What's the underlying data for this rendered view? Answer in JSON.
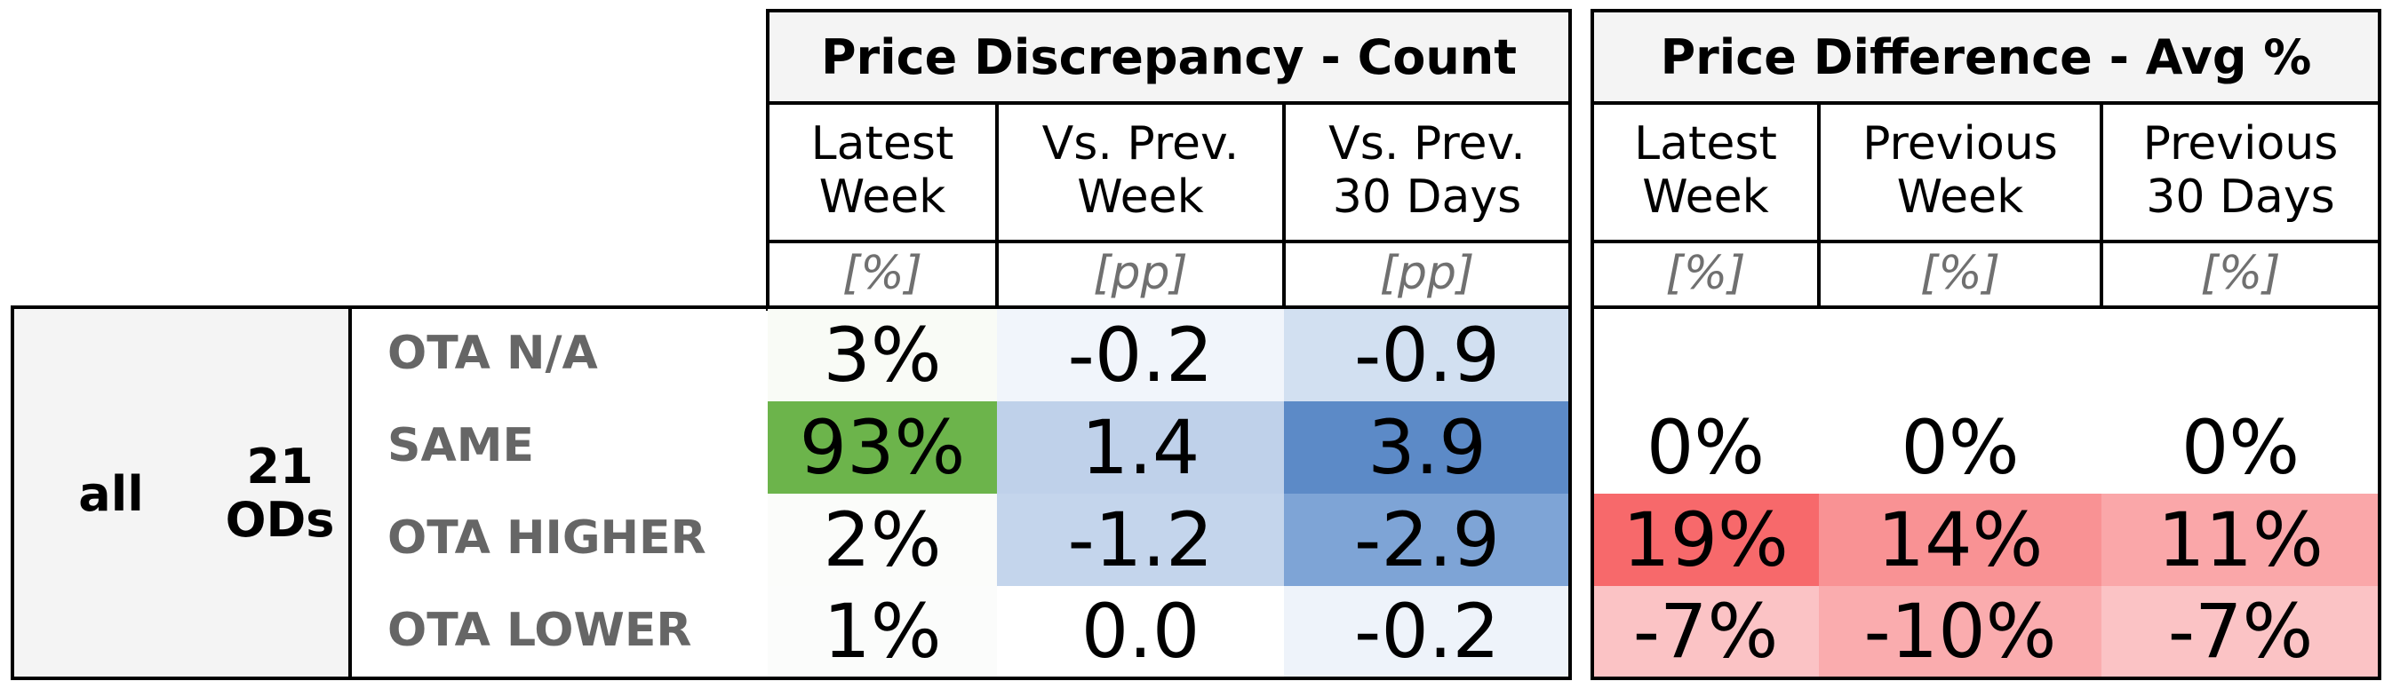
{
  "chart_data": {
    "type": "table",
    "groups": [
      {
        "title": "Price Discrepancy - Count",
        "columns": [
          {
            "label_lines": [
              "Latest",
              "Week"
            ],
            "unit": "[%]"
          },
          {
            "label_lines": [
              "Vs. Prev.",
              "Week"
            ],
            "unit": "[pp]"
          },
          {
            "label_lines": [
              "Vs. Prev.",
              "30 Days"
            ],
            "unit": "[pp]"
          }
        ],
        "rows": [
          [
            "3%",
            "-0.2",
            "-0.9"
          ],
          [
            "93%",
            "1.4",
            "3.9"
          ],
          [
            "2%",
            "-1.2",
            "-2.9"
          ],
          [
            "1%",
            "0.0",
            "-0.2"
          ]
        ],
        "cell_colors": [
          [
            "#f9fbf6",
            "#f1f5fb",
            "#d2e0f1"
          ],
          [
            "#6cb44b",
            "#bfd1ea",
            "#5c8ac7"
          ],
          [
            "#fbfcfa",
            "#c4d5ec",
            "#7ea4d6"
          ],
          [
            "#fbfcfb",
            "#ffffff",
            "#eef3fa"
          ]
        ]
      },
      {
        "title": "Price Difference - Avg %",
        "columns": [
          {
            "label_lines": [
              "Latest",
              "Week"
            ],
            "unit": "[%]"
          },
          {
            "label_lines": [
              "Previous",
              "Week"
            ],
            "unit": "[%]"
          },
          {
            "label_lines": [
              "Previous",
              "30 Days"
            ],
            "unit": "[%]"
          }
        ],
        "rows": [
          [
            "",
            "",
            ""
          ],
          [
            "0%",
            "0%",
            "0%"
          ],
          [
            "19%",
            "14%",
            "11%"
          ],
          [
            "-7%",
            "-10%",
            "-7%"
          ]
        ],
        "cell_colors": [
          [
            "#ffffff",
            "#ffffff",
            "#ffffff"
          ],
          [
            "#ffffff",
            "#ffffff",
            "#ffffff"
          ],
          [
            "#f7696b",
            "#f99294",
            "#faa7a9"
          ],
          [
            "#fbc3c5",
            "#faacae",
            "#fbc3c5"
          ]
        ]
      }
    ],
    "row_labels": [
      "OTA N/A",
      "SAME",
      "OTA HIGHER",
      "OTA LOWER"
    ],
    "row_group": {
      "segment": "all",
      "od_lines": [
        "21",
        "ODs"
      ]
    }
  }
}
